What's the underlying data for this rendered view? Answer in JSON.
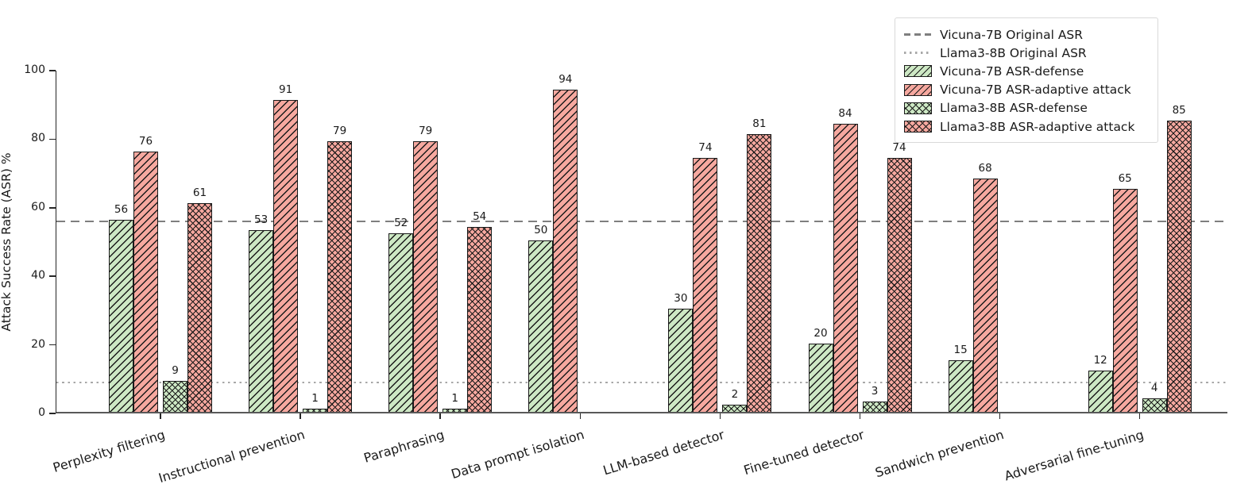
{
  "chart_data": {
    "type": "bar",
    "title": "",
    "xlabel": "",
    "ylabel": "Attack Success Rate (ASR) %",
    "ylim": [
      0,
      100
    ],
    "yticks": [
      0,
      20,
      40,
      60,
      80,
      100
    ],
    "grid": false,
    "legend_position": "upper right",
    "categories": [
      "Perplexity filtering",
      "Instructional prevention",
      "Paraphrasing",
      "Data prompt isolation",
      "LLM-based detector",
      "Fine-tuned detector",
      "Sandwich prevention",
      "Adversarial fine-tuning"
    ],
    "series": [
      {
        "name": "Vicuna-7B ASR-defense",
        "hatch": "diagonal",
        "fill": "#cde8c4",
        "values": [
          56,
          53,
          52,
          50,
          30,
          20,
          15,
          12
        ]
      },
      {
        "name": "Vicuna-7B ASR-adaptive attack",
        "hatch": "diagonal",
        "fill": "#f6a89f",
        "values": [
          76,
          91,
          79,
          94,
          74,
          84,
          68,
          65
        ]
      },
      {
        "name": "Llama3-8B ASR-defense",
        "hatch": "cross",
        "fill": "#cde8c4",
        "values": [
          9,
          1,
          1,
          0,
          2,
          3,
          0,
          4
        ]
      },
      {
        "name": "Llama3-8B ASR-adaptive attack",
        "hatch": "cross",
        "fill": "#f6a89f",
        "values": [
          61,
          79,
          54,
          0,
          81,
          74,
          0,
          85
        ]
      }
    ],
    "bar_labels_shown": true,
    "zero_value_bars_hidden": true,
    "reference_lines": [
      {
        "name": "Vicuna-7B Original ASR",
        "value": 56,
        "style": "dashed",
        "color": "#7f7f7f"
      },
      {
        "name": "Llama3-8B Original ASR",
        "value": 9,
        "style": "dotted",
        "color": "#a8a8a8"
      }
    ]
  },
  "colors": {
    "green_fill": "#cde8c4",
    "red_fill": "#f6a89f",
    "hatch": "#1a1a1a",
    "bar_edge": "#1a1a1a",
    "dashed_line": "#7f7f7f",
    "dotted_line": "#a8a8a8",
    "axis": "#262626",
    "text": "#1a1a1a"
  }
}
